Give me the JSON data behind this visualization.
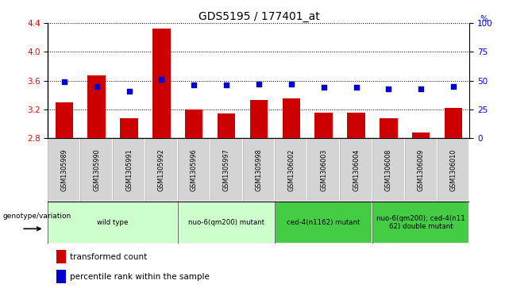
{
  "title": "GDS5195 / 177401_at",
  "samples": [
    "GSM1305989",
    "GSM1305990",
    "GSM1305991",
    "GSM1305992",
    "GSM1305996",
    "GSM1305997",
    "GSM1305998",
    "GSM1306002",
    "GSM1306003",
    "GSM1306004",
    "GSM1306008",
    "GSM1306009",
    "GSM1306010"
  ],
  "bar_values": [
    3.3,
    3.67,
    3.08,
    4.32,
    3.2,
    3.14,
    3.33,
    3.35,
    3.16,
    3.16,
    3.08,
    2.88,
    3.22
  ],
  "scatter_values": [
    49,
    45,
    41,
    51,
    46,
    46,
    47,
    47,
    44,
    44,
    43,
    43,
    45
  ],
  "ylim": [
    2.8,
    4.4
  ],
  "yticks": [
    2.8,
    3.2,
    3.6,
    4.0,
    4.4
  ],
  "y2lim": [
    0,
    100
  ],
  "y2ticks": [
    0,
    25,
    50,
    75,
    100
  ],
  "bar_color": "#cc0000",
  "scatter_color": "#0000cc",
  "bar_baseline": 2.8,
  "groups": [
    {
      "label": "wild type",
      "start": 0,
      "end": 3,
      "color": "#ccffcc"
    },
    {
      "label": "nuo-6(qm200) mutant",
      "start": 4,
      "end": 6,
      "color": "#ccffcc"
    },
    {
      "label": "ced-4(n1162) mutant",
      "start": 7,
      "end": 9,
      "color": "#44cc44"
    },
    {
      "label": "nuo-6(qm200); ced-4(n11\n62) double mutant",
      "start": 10,
      "end": 12,
      "color": "#44cc44"
    }
  ],
  "sample_box_color": "#d4d4d4",
  "legend_label_bar": "transformed count",
  "legend_label_scatter": "percentile rank within the sample",
  "genotype_label": "genotype/variation",
  "title_fontsize": 10
}
